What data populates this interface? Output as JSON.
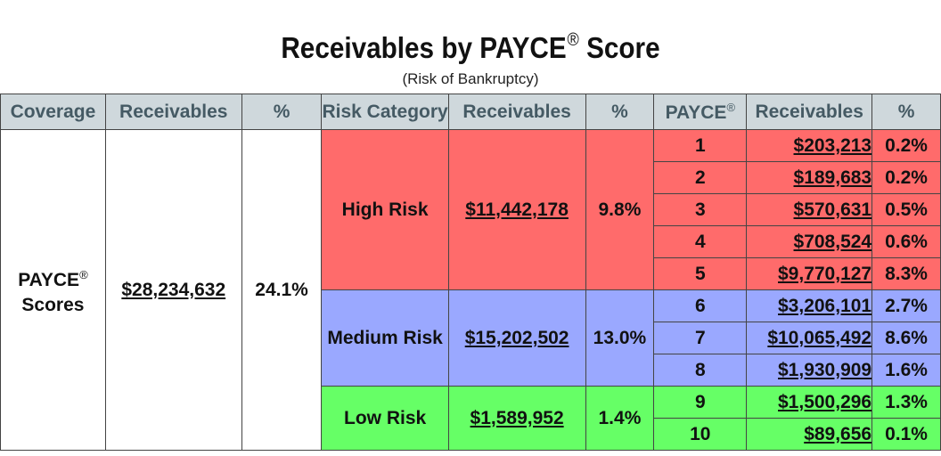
{
  "title": {
    "text": "Receivables by PAYCE",
    "mark": "®",
    "suffix": " Score"
  },
  "subtitle": "(Risk of Bankruptcy)",
  "headers": {
    "coverage": "Coverage",
    "receivables": "Receivables",
    "pct": "%",
    "risk_category": "Risk Category",
    "receivables2": "Receivables",
    "pct2": "%",
    "payce": "PAYCE",
    "payce_mark": "®",
    "receivables3": "Receivables",
    "pct3": "%"
  },
  "coverage": {
    "label_line1": "PAYCE",
    "label_mark": "®",
    "label_line2": "Scores",
    "receivables": "$28,234,632",
    "pct": "24.1%"
  },
  "categories": [
    {
      "label": "High Risk",
      "receivables": "$11,442,178",
      "pct": "9.8%",
      "color": "#ff6b6b"
    },
    {
      "label": "Medium Risk",
      "receivables": "$15,202,502",
      "pct": "13.0%",
      "color": "#9aa8ff"
    },
    {
      "label": "Low Risk",
      "receivables": "$1,589,952",
      "pct": "1.4%",
      "color": "#66ff66"
    }
  ],
  "scores": [
    {
      "score": "1",
      "receivables": "$203,213",
      "pct": "0.2%"
    },
    {
      "score": "2",
      "receivables": "$189,683",
      "pct": "0.2%"
    },
    {
      "score": "3",
      "receivables": "$570,631",
      "pct": "0.5%"
    },
    {
      "score": "4",
      "receivables": "$708,524",
      "pct": "0.6%"
    },
    {
      "score": "5",
      "receivables": "$9,770,127",
      "pct": "8.3%"
    },
    {
      "score": "6",
      "receivables": "$3,206,101",
      "pct": "2.7%"
    },
    {
      "score": "7",
      "receivables": "$10,065,492",
      "pct": "8.6%"
    },
    {
      "score": "8",
      "receivables": "$1,930,909",
      "pct": "1.6%"
    },
    {
      "score": "9",
      "receivables": "$1,500,296",
      "pct": "1.3%"
    },
    {
      "score": "10",
      "receivables": "$89,656",
      "pct": "0.1%"
    }
  ],
  "colors": {
    "header_bg": "#cfd8dc",
    "header_text": "#455a64",
    "high": "#ff6b6b",
    "medium": "#9aa8ff",
    "low": "#66ff66"
  }
}
